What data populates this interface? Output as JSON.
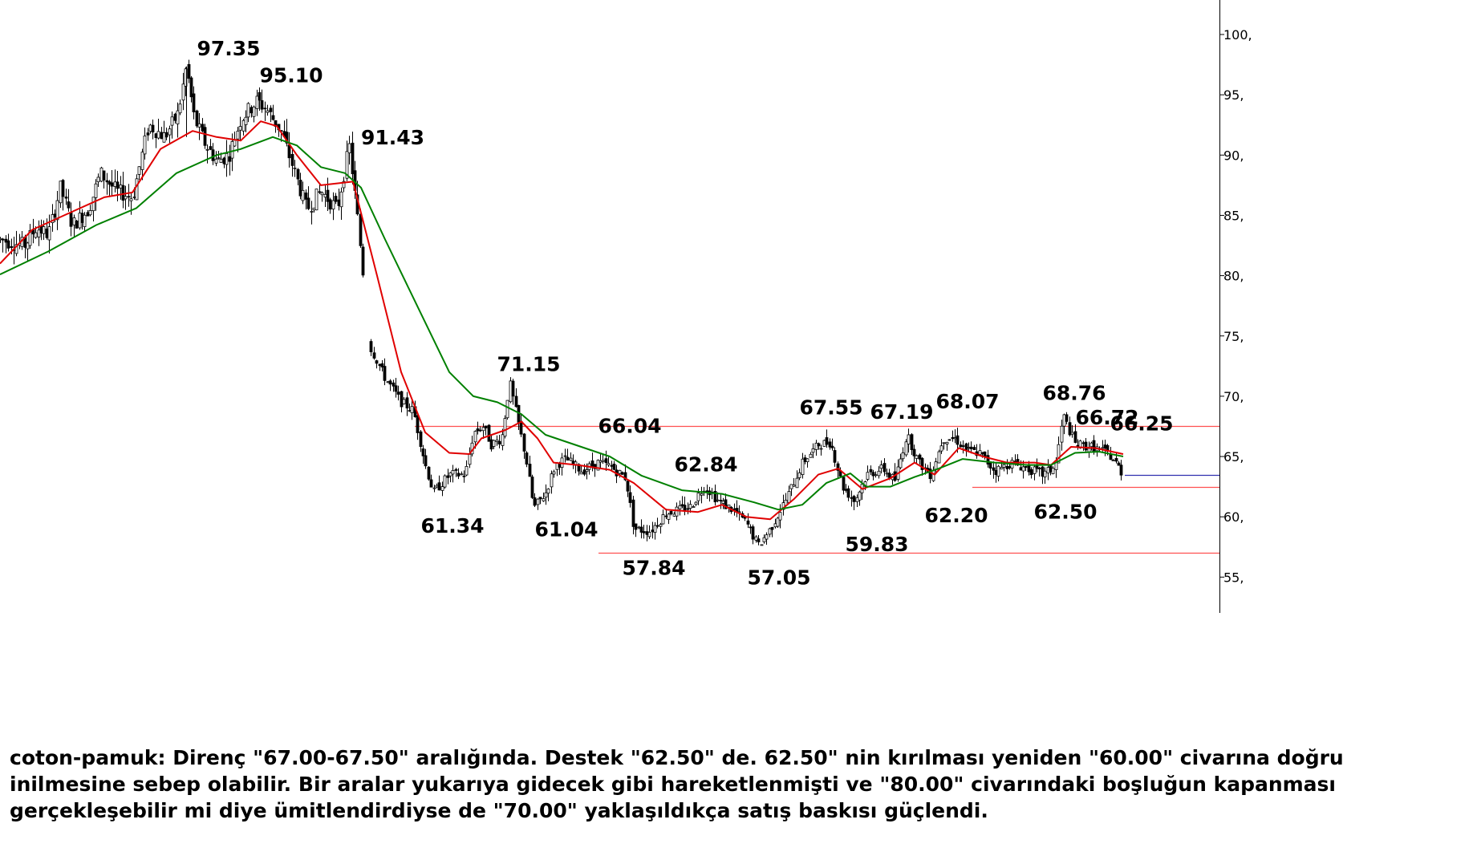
{
  "chart_data": {
    "type": "line",
    "instrument": "coton-pamuk",
    "chart_style": "candlestick with two moving averages",
    "ylim": [
      52.5,
      102.5
    ],
    "y_axis_side": "right",
    "y_ticks": [
      {
        "value": 100,
        "label": "100,"
      },
      {
        "value": 95,
        "label": "95,"
      },
      {
        "value": 90,
        "label": "90,"
      },
      {
        "value": 85,
        "label": "85,"
      },
      {
        "value": 80,
        "label": "80,"
      },
      {
        "value": 75,
        "label": "75,"
      },
      {
        "value": 70,
        "label": "70,"
      },
      {
        "value": 65,
        "label": "65,"
      },
      {
        "value": 60,
        "label": "60,"
      },
      {
        "value": 55,
        "label": "55,"
      }
    ],
    "xlim": [
      0,
      1520
    ],
    "grid": false,
    "series": [
      {
        "color": "#e00000",
        "style": "fast moving average",
        "points": [
          [
            0,
            81.0
          ],
          [
            40,
            83.8
          ],
          [
            90,
            85.3
          ],
          [
            130,
            86.5
          ],
          [
            165,
            86.9
          ],
          [
            200,
            90.5
          ],
          [
            240,
            92.0
          ],
          [
            270,
            91.5
          ],
          [
            300,
            91.2
          ],
          [
            325,
            92.8
          ],
          [
            345,
            92.4
          ],
          [
            370,
            90.0
          ],
          [
            400,
            87.5
          ],
          [
            440,
            87.8
          ],
          [
            470,
            80.0
          ],
          [
            500,
            72.0
          ],
          [
            530,
            67.0
          ],
          [
            560,
            65.3
          ],
          [
            585,
            65.2
          ],
          [
            600,
            66.5
          ],
          [
            630,
            67.2
          ],
          [
            650,
            67.9
          ],
          [
            670,
            66.5
          ],
          [
            690,
            64.5
          ],
          [
            720,
            64.3
          ],
          [
            760,
            63.9
          ],
          [
            790,
            62.8
          ],
          [
            830,
            60.6
          ],
          [
            870,
            60.4
          ],
          [
            900,
            61.0
          ],
          [
            930,
            60.0
          ],
          [
            960,
            59.8
          ],
          [
            990,
            61.5
          ],
          [
            1020,
            63.5
          ],
          [
            1045,
            64.0
          ],
          [
            1075,
            62.3
          ],
          [
            1110,
            63.2
          ],
          [
            1140,
            64.5
          ],
          [
            1165,
            63.5
          ],
          [
            1195,
            65.7
          ],
          [
            1225,
            65.0
          ],
          [
            1255,
            64.5
          ],
          [
            1290,
            64.5
          ],
          [
            1310,
            64.3
          ],
          [
            1335,
            65.8
          ],
          [
            1365,
            65.7
          ],
          [
            1400,
            65.2
          ]
        ]
      },
      {
        "color": "#008000",
        "style": "slow moving average",
        "points": [
          [
            0,
            80.1
          ],
          [
            60,
            82.0
          ],
          [
            120,
            84.2
          ],
          [
            170,
            85.6
          ],
          [
            220,
            88.5
          ],
          [
            270,
            90.0
          ],
          [
            300,
            90.5
          ],
          [
            340,
            91.5
          ],
          [
            370,
            90.8
          ],
          [
            400,
            89.0
          ],
          [
            430,
            88.5
          ],
          [
            450,
            87.3
          ],
          [
            480,
            83.0
          ],
          [
            520,
            77.5
          ],
          [
            560,
            72.0
          ],
          [
            590,
            70.0
          ],
          [
            620,
            69.5
          ],
          [
            650,
            68.5
          ],
          [
            680,
            66.8
          ],
          [
            720,
            65.9
          ],
          [
            760,
            65.0
          ],
          [
            800,
            63.4
          ],
          [
            850,
            62.2
          ],
          [
            900,
            61.9
          ],
          [
            940,
            61.2
          ],
          [
            970,
            60.6
          ],
          [
            1000,
            61.0
          ],
          [
            1030,
            62.8
          ],
          [
            1060,
            63.6
          ],
          [
            1080,
            62.5
          ],
          [
            1110,
            62.5
          ],
          [
            1140,
            63.3
          ],
          [
            1170,
            64.0
          ],
          [
            1200,
            64.8
          ],
          [
            1240,
            64.5
          ],
          [
            1280,
            64.3
          ],
          [
            1310,
            64.3
          ],
          [
            1340,
            65.3
          ],
          [
            1370,
            65.4
          ],
          [
            1400,
            65.0
          ]
        ]
      }
    ],
    "price_annotations": [
      {
        "label": "97.35",
        "x": 285,
        "value": 97.35,
        "position": "above"
      },
      {
        "label": "95.10",
        "x": 363,
        "value": 95.1,
        "position": "above"
      },
      {
        "label": "91.43",
        "x": 482,
        "value": 91.43,
        "position": "right"
      },
      {
        "label": "71.15",
        "x": 659,
        "value": 71.15,
        "position": "above"
      },
      {
        "label": "61.34",
        "x": 564,
        "value": 61.34,
        "position": "below"
      },
      {
        "label": "61.04",
        "x": 706,
        "value": 61.04,
        "position": "below"
      },
      {
        "label": "66.04",
        "x": 785,
        "value": 66.04,
        "position": "above"
      },
      {
        "label": "62.84",
        "x": 880,
        "value": 62.84,
        "position": "above"
      },
      {
        "label": "57.84",
        "x": 815,
        "value": 57.84,
        "position": "below"
      },
      {
        "label": "57.05",
        "x": 971,
        "value": 57.05,
        "position": "below"
      },
      {
        "label": "67.55",
        "x": 1036,
        "value": 67.55,
        "position": "above"
      },
      {
        "label": "59.83",
        "x": 1093,
        "value": 59.83,
        "position": "below"
      },
      {
        "label": "67.19",
        "x": 1124,
        "value": 67.19,
        "position": "above"
      },
      {
        "label": "68.07",
        "x": 1206,
        "value": 68.07,
        "position": "above"
      },
      {
        "label": "62.20",
        "x": 1192,
        "value": 62.2,
        "position": "below"
      },
      {
        "label": "68.76",
        "x": 1339,
        "value": 68.76,
        "position": "above"
      },
      {
        "label": "66.72",
        "x": 1380,
        "value": 66.72,
        "position": "above"
      },
      {
        "label": "62.50",
        "x": 1328,
        "value": 62.5,
        "position": "below"
      },
      {
        "label": "66.25",
        "x": 1423,
        "value": 66.25,
        "position": "above"
      }
    ],
    "reference_lines": [
      {
        "value": 67.55,
        "x_start": 517,
        "x_end": 1520,
        "color": "#ff5050",
        "meaning": "direnç"
      },
      {
        "value": 62.5,
        "x_start": 1212,
        "x_end": 1520,
        "color": "#ff5050",
        "meaning": "destek"
      },
      {
        "value": 57.05,
        "x_start": 746,
        "x_end": 1520,
        "color": "#ff5050",
        "meaning": "dip"
      },
      {
        "value": 63.5,
        "x_start": 1402,
        "x_end": 1520,
        "color": "#3030b0",
        "meaning": "son fiyat"
      }
    ],
    "price_path": [
      [
        0,
        83
      ],
      [
        30,
        82.5
      ],
      [
        45,
        84
      ],
      [
        60,
        83.4
      ],
      [
        75,
        87.3
      ],
      [
        90,
        84.2
      ],
      [
        110,
        85.5
      ],
      [
        125,
        88.5
      ],
      [
        145,
        87
      ],
      [
        165,
        86.5
      ],
      [
        185,
        92.5
      ],
      [
        205,
        91.5
      ],
      [
        222,
        93.5
      ],
      [
        232,
        97.35
      ],
      [
        242,
        93
      ],
      [
        255,
        91
      ],
      [
        270,
        89.5
      ],
      [
        285,
        90
      ],
      [
        300,
        93
      ],
      [
        320,
        94.5
      ],
      [
        332,
        93.8
      ],
      [
        350,
        92
      ],
      [
        365,
        89
      ],
      [
        382,
        85.5
      ],
      [
        400,
        87
      ],
      [
        420,
        85.5
      ],
      [
        435,
        90.8
      ],
      [
        445,
        85
      ],
      [
        452,
        80.5
      ],
      [
        462,
        74
      ],
      [
        480,
        71.5
      ],
      [
        500,
        69.5
      ],
      [
        515,
        68.8
      ],
      [
        530,
        64.3
      ],
      [
        540,
        62
      ],
      [
        560,
        63.5
      ],
      [
        580,
        63.5
      ],
      [
        590,
        67
      ],
      [
        602,
        67.5
      ],
      [
        612,
        66
      ],
      [
        625,
        66.5
      ],
      [
        635,
        71.15
      ],
      [
        645,
        68
      ],
      [
        655,
        65
      ],
      [
        665,
        60.7
      ],
      [
        680,
        62
      ],
      [
        692,
        64.3
      ],
      [
        705,
        64.8
      ],
      [
        725,
        63.8
      ],
      [
        745,
        64.5
      ],
      [
        760,
        64.2
      ],
      [
        780,
        63.2
      ],
      [
        790,
        59
      ],
      [
        810,
        58.8
      ],
      [
        830,
        60.3
      ],
      [
        860,
        60.8
      ],
      [
        878,
        62.6
      ],
      [
        895,
        61.3
      ],
      [
        915,
        60.5
      ],
      [
        930,
        59.5
      ],
      [
        945,
        57.6
      ],
      [
        960,
        59
      ],
      [
        980,
        61.5
      ],
      [
        1000,
        64.5
      ],
      [
        1020,
        66
      ],
      [
        1035,
        66.2
      ],
      [
        1050,
        62.5
      ],
      [
        1065,
        61.3
      ],
      [
        1080,
        63.5
      ],
      [
        1100,
        64
      ],
      [
        1115,
        63
      ],
      [
        1130,
        66.8
      ],
      [
        1145,
        64.5
      ],
      [
        1160,
        63.5
      ],
      [
        1175,
        66.5
      ],
      [
        1190,
        66.5
      ],
      [
        1205,
        65.5
      ],
      [
        1220,
        65.3
      ],
      [
        1240,
        63.8
      ],
      [
        1260,
        64.5
      ],
      [
        1280,
        64
      ],
      [
        1300,
        63.5
      ],
      [
        1315,
        64.2
      ],
      [
        1325,
        68.4
      ],
      [
        1340,
        66
      ],
      [
        1360,
        65.8
      ],
      [
        1380,
        65.3
      ],
      [
        1390,
        64.5
      ],
      [
        1400,
        63.5
      ]
    ]
  },
  "caption": {
    "lines": [
      "coton-pamuk: Direnç \"67.00-67.50\" aralığında. Destek \"62.50\" de. 62.50\" nin kırılması yeniden \"60.00\" civarına doğru",
      "inilmesine sebep olabilir. Bir aralar yukarıya gidecek gibi hareketlenmişti ve \"80.00\" civarındaki boşluğun kapanması",
      "gerçekleşebilir mi diye ümitlendirdiyse de \"70.00\" yaklaşıldıkça satış baskısı güçlendi."
    ]
  }
}
